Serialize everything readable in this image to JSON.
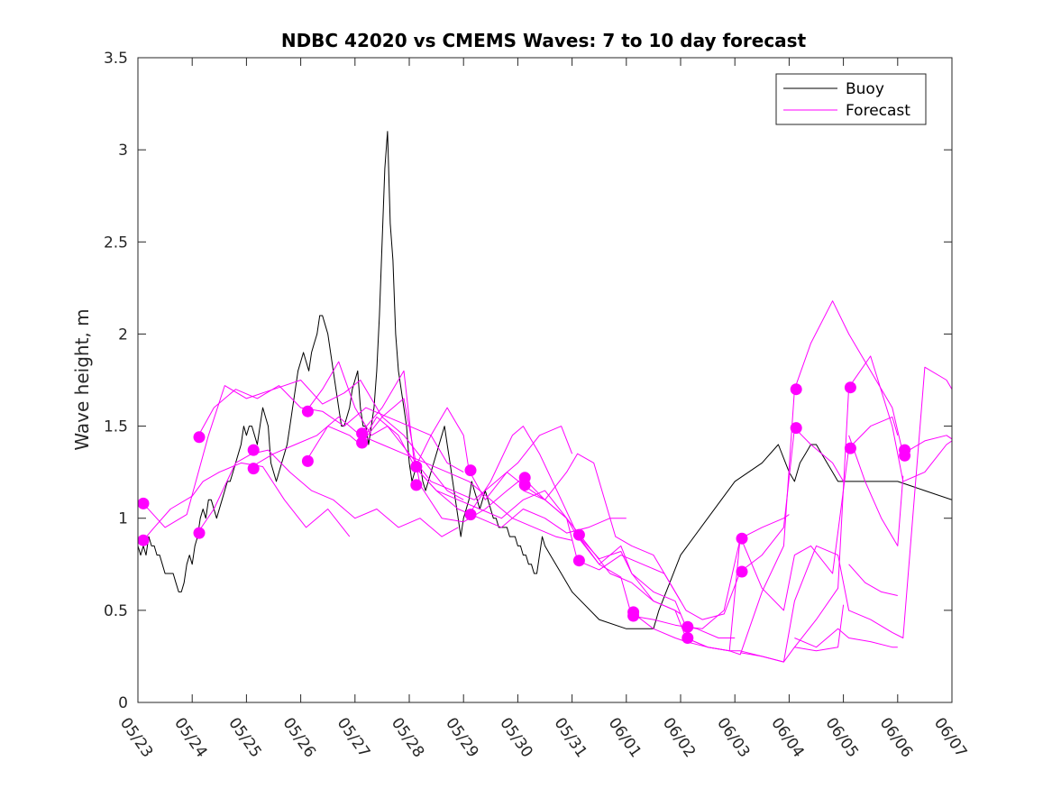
{
  "chart_data": {
    "type": "line",
    "title": "NDBC 42020 vs CMEMS Waves: 7 to 10 day forecast",
    "xlabel": "",
    "ylabel": "Wave height, m",
    "xlim": [
      0,
      15
    ],
    "ylim": [
      0,
      3.5
    ],
    "x_tick_labels": [
      "05/23",
      "05/24",
      "05/25",
      "05/26",
      "05/27",
      "05/28",
      "05/29",
      "05/30",
      "05/31",
      "06/01",
      "06/02",
      "06/03",
      "06/04",
      "06/05",
      "06/06",
      "06/07"
    ],
    "y_ticks": [
      0,
      0.5,
      1,
      1.5,
      2,
      2.5,
      3,
      3.5
    ],
    "y_tick_labels": [
      "0",
      "0.5",
      "1",
      "1.5",
      "2",
      "2.5",
      "3",
      "3.5"
    ],
    "x_unit": "days from 05/23",
    "grid": false,
    "legend": {
      "position": "top-right",
      "entries": [
        {
          "name": "Buoy",
          "color": "#000000"
        },
        {
          "name": "Forecast",
          "color": "#ff00ff"
        }
      ]
    },
    "series": [
      {
        "name": "Buoy",
        "color": "#000000",
        "x": [
          0,
          0.05,
          0.1,
          0.15,
          0.2,
          0.25,
          0.3,
          0.35,
          0.4,
          0.45,
          0.5,
          0.55,
          0.6,
          0.65,
          0.7,
          0.75,
          0.8,
          0.85,
          0.9,
          0.95,
          1.0,
          1.05,
          1.1,
          1.15,
          1.2,
          1.25,
          1.3,
          1.35,
          1.4,
          1.45,
          1.5,
          1.55,
          1.6,
          1.65,
          1.7,
          1.75,
          1.8,
          1.85,
          1.9,
          1.95,
          2.0,
          2.05,
          2.1,
          2.15,
          2.2,
          2.25,
          2.3,
          2.35,
          2.4,
          2.45,
          2.5,
          2.55,
          2.6,
          2.65,
          2.7,
          2.75,
          2.8,
          2.85,
          2.9,
          2.95,
          3.0,
          3.05,
          3.1,
          3.15,
          3.2,
          3.25,
          3.3,
          3.35,
          3.4,
          3.45,
          3.5,
          3.55,
          3.6,
          3.65,
          3.7,
          3.75,
          3.8,
          3.85,
          3.9,
          3.95,
          4.0,
          4.05,
          4.1,
          4.15,
          4.2,
          4.25,
          4.3,
          4.35,
          4.4,
          4.45,
          4.5,
          4.55,
          4.6,
          4.65,
          4.7,
          4.75,
          4.8,
          4.85,
          4.9,
          4.95,
          5.0,
          5.05,
          5.1,
          5.15,
          5.2,
          5.25,
          5.3,
          5.35,
          5.4,
          5.45,
          5.5,
          5.55,
          5.6,
          5.65,
          5.7,
          5.75,
          5.8,
          5.85,
          5.9,
          5.95,
          6.0,
          6.05,
          6.1,
          6.15,
          6.2,
          6.25,
          6.3,
          6.35,
          6.4,
          6.45,
          6.5,
          6.55,
          6.6,
          6.65,
          6.7,
          6.75,
          6.8,
          6.85,
          6.9,
          6.95,
          7.0,
          7.05,
          7.1,
          7.15,
          7.2,
          7.25,
          7.3,
          7.35,
          7.4,
          7.45,
          7.5,
          7.6,
          7.8,
          8.0,
          8.5,
          9.0,
          9.5,
          9.6,
          9.8,
          10.0,
          10.5,
          11.0,
          11.5,
          11.8,
          12.0,
          12.1,
          12.15,
          12.2,
          12.3,
          12.4,
          12.5,
          12.6,
          12.7,
          12.8,
          12.9,
          13.0,
          13.5,
          14.0,
          14.5,
          15.0
        ],
        "y": [
          0.85,
          0.8,
          0.85,
          0.8,
          0.9,
          0.85,
          0.85,
          0.8,
          0.8,
          0.75,
          0.7,
          0.7,
          0.7,
          0.7,
          0.65,
          0.6,
          0.6,
          0.65,
          0.75,
          0.8,
          0.75,
          0.85,
          0.9,
          1.0,
          1.05,
          1.0,
          1.1,
          1.1,
          1.05,
          1.0,
          1.05,
          1.1,
          1.15,
          1.2,
          1.2,
          1.25,
          1.3,
          1.35,
          1.4,
          1.5,
          1.45,
          1.5,
          1.5,
          1.45,
          1.4,
          1.5,
          1.6,
          1.55,
          1.5,
          1.3,
          1.25,
          1.2,
          1.25,
          1.3,
          1.35,
          1.4,
          1.5,
          1.6,
          1.7,
          1.8,
          1.85,
          1.9,
          1.85,
          1.8,
          1.9,
          1.95,
          2.0,
          2.1,
          2.1,
          2.05,
          2.0,
          1.9,
          1.8,
          1.7,
          1.6,
          1.5,
          1.5,
          1.55,
          1.6,
          1.7,
          1.75,
          1.8,
          1.6,
          1.5,
          1.5,
          1.4,
          1.5,
          1.6,
          1.8,
          2.1,
          2.5,
          2.9,
          3.1,
          2.6,
          2.4,
          2.0,
          1.8,
          1.7,
          1.6,
          1.5,
          1.3,
          1.2,
          1.25,
          1.3,
          1.3,
          1.2,
          1.15,
          1.2,
          1.25,
          1.3,
          1.35,
          1.4,
          1.45,
          1.5,
          1.4,
          1.3,
          1.2,
          1.1,
          1.0,
          0.9,
          1.0,
          1.05,
          1.1,
          1.2,
          1.15,
          1.1,
          1.05,
          1.1,
          1.15,
          1.1,
          1.05,
          1.0,
          1.0,
          0.95,
          0.95,
          0.95,
          0.95,
          0.9,
          0.9,
          0.9,
          0.85,
          0.85,
          0.8,
          0.8,
          0.75,
          0.75,
          0.7,
          0.7,
          0.8,
          0.9,
          0.85,
          0.8,
          0.7,
          0.6,
          0.45,
          0.4,
          0.4,
          0.5,
          0.65,
          0.8,
          1.0,
          1.2,
          1.3,
          1.4,
          1.25,
          1.2,
          1.25,
          1.3,
          1.35,
          1.4,
          1.4,
          1.35,
          1.3,
          1.25,
          1.2,
          1.2,
          1.2,
          1.2,
          1.15,
          1.1
        ]
      },
      {
        "name": "",
        "color": "#ff00ff",
        "x": [
          0.1,
          0.3,
          0.6,
          1.0,
          1.2,
          1.5,
          1.9,
          2.3,
          2.7,
          3.1,
          3.5,
          3.9
        ],
        "y": [
          0.88,
          0.95,
          1.05,
          1.12,
          1.2,
          1.25,
          1.3,
          1.28,
          1.1,
          0.95,
          1.05,
          0.9
        ]
      },
      {
        "name": "",
        "color": "#ff00ff",
        "x": [
          0.1,
          0.5,
          0.9,
          1.3,
          1.6,
          2.0,
          2.5,
          3.0,
          3.4,
          3.8,
          4.1,
          4.5,
          4.9,
          5.3,
          5.7,
          6.0
        ],
        "y": [
          1.08,
          0.95,
          1.02,
          1.45,
          1.72,
          1.65,
          1.7,
          1.75,
          1.62,
          1.68,
          1.75,
          1.55,
          1.45,
          1.3,
          1.15,
          1.1
        ]
      },
      {
        "name": "",
        "color": "#ff00ff",
        "x": [
          1.1,
          1.4,
          1.8,
          2.1,
          2.4,
          2.8,
          3.2,
          3.6,
          4.0,
          4.4,
          4.8,
          5.2,
          5.6,
          5.9
        ],
        "y": [
          0.92,
          1.05,
          1.3,
          1.35,
          1.37,
          1.25,
          1.15,
          1.1,
          1.0,
          1.05,
          0.95,
          1.0,
          0.9,
          0.95
        ]
      },
      {
        "name": "",
        "color": "#ff00ff",
        "x": [
          1.1,
          1.4,
          1.8,
          2.2,
          2.6,
          3.0,
          3.4,
          3.8,
          4.2,
          4.6,
          5.0,
          5.4,
          5.7,
          6.0
        ],
        "y": [
          1.44,
          1.6,
          1.7,
          1.65,
          1.72,
          1.6,
          1.58,
          1.5,
          1.6,
          1.55,
          1.5,
          1.45,
          1.3,
          1.25
        ]
      },
      {
        "name": "",
        "color": "#ff00ff",
        "x": [
          2.1,
          2.5,
          2.9,
          3.3,
          3.7,
          4.1,
          4.5,
          4.9,
          5.3,
          5.7,
          6.1,
          6.5,
          6.9,
          7.3,
          7.7,
          8.0
        ],
        "y": [
          1.28,
          1.35,
          1.4,
          1.45,
          1.55,
          1.45,
          1.4,
          1.35,
          1.3,
          1.25,
          1.2,
          1.1,
          1.0,
          0.95,
          0.9,
          0.88
        ]
      },
      {
        "name": "",
        "color": "#ff00ff",
        "x": [
          3.1,
          3.4,
          3.7,
          4.0,
          4.3,
          4.6,
          5.0,
          5.4,
          5.8,
          6.2,
          6.6,
          7.0,
          7.4,
          7.8,
          8.0
        ],
        "y": [
          1.58,
          1.7,
          1.85,
          1.6,
          1.45,
          1.5,
          1.35,
          1.2,
          1.15,
          1.1,
          1.2,
          1.3,
          1.45,
          1.5,
          1.35
        ]
      },
      {
        "name": "",
        "color": "#ff00ff",
        "x": [
          3.1,
          3.5,
          3.9,
          4.1,
          4.4,
          4.8,
          5.1,
          5.5,
          5.9,
          6.3,
          6.7,
          7.1,
          7.5,
          7.9,
          8.3,
          8.7,
          9.0
        ],
        "y": [
          1.31,
          1.5,
          1.45,
          1.4,
          1.55,
          1.45,
          1.28,
          1.15,
          1.05,
          1.0,
          0.95,
          1.05,
          1.0,
          0.92,
          0.95,
          1.0,
          1.0
        ]
      },
      {
        "name": "",
        "color": "#ff00ff",
        "x": [
          4.1,
          4.5,
          4.9,
          5.1,
          5.5,
          5.9,
          6.3,
          6.7,
          7.1,
          7.5,
          7.9,
          8.1,
          8.5,
          8.9,
          9.3,
          9.7,
          10.0
        ],
        "y": [
          1.46,
          1.6,
          1.8,
          1.28,
          1.15,
          1.1,
          1.05,
          1.0,
          1.1,
          1.15,
          1.0,
          0.77,
          0.72,
          0.8,
          0.75,
          0.7,
          0.55
        ]
      },
      {
        "name": "",
        "color": "#ff00ff",
        "x": [
          4.1,
          4.5,
          4.9,
          5.2,
          5.6,
          6.0,
          6.4,
          6.8,
          7.1,
          7.5,
          7.9,
          8.3,
          8.7,
          9.1,
          9.5,
          9.9,
          10.0
        ],
        "y": [
          1.4,
          1.55,
          1.65,
          1.18,
          1.0,
          0.98,
          1.05,
          1.15,
          1.22,
          1.1,
          1.0,
          0.85,
          0.7,
          0.65,
          0.55,
          0.5,
          0.48
        ]
      },
      {
        "name": "",
        "color": "#ff00ff",
        "x": [
          5.1,
          5.4,
          5.7,
          6.0,
          6.1,
          6.4,
          6.8,
          7.1,
          7.5,
          7.9,
          8.1,
          8.5,
          8.9,
          9.1,
          9.5,
          9.9,
          10.3,
          10.7,
          11.0
        ],
        "y": [
          1.27,
          1.45,
          1.6,
          1.45,
          1.26,
          1.1,
          1.25,
          1.18,
          1.1,
          1.0,
          0.9,
          0.75,
          0.68,
          0.47,
          0.45,
          0.42,
          0.4,
          0.35,
          0.35
        ]
      },
      {
        "name": "",
        "color": "#ff00ff",
        "x": [
          6.1,
          6.5,
          6.9,
          7.1,
          7.4,
          7.8,
          8.1,
          8.5,
          8.9,
          9.1,
          9.5,
          9.9,
          10.1,
          10.4,
          10.8,
          11.1,
          11.5,
          11.9,
          12.0
        ],
        "y": [
          1.02,
          1.2,
          1.45,
          1.5,
          1.35,
          1.1,
          0.91,
          0.75,
          0.85,
          0.7,
          0.6,
          0.55,
          0.41,
          0.4,
          0.5,
          0.89,
          0.95,
          1.0,
          1.02
        ]
      },
      {
        "name": "",
        "color": "#ff00ff",
        "x": [
          7.1,
          7.5,
          7.9,
          8.1,
          8.4,
          8.8,
          9.1,
          9.5,
          9.9,
          10.1,
          10.4,
          10.8,
          11.1,
          11.5,
          11.9,
          12.1,
          12.4,
          12.8,
          13.0
        ],
        "y": [
          1.15,
          1.1,
          1.25,
          1.35,
          1.3,
          0.9,
          0.85,
          0.8,
          0.6,
          0.5,
          0.45,
          0.48,
          0.71,
          0.8,
          0.95,
          1.49,
          1.4,
          1.3,
          1.2
        ]
      },
      {
        "name": "",
        "color": "#ff00ff",
        "x": [
          8.1,
          8.5,
          8.9,
          9.1,
          9.5,
          9.9,
          10.1,
          10.5,
          10.9,
          11.1,
          11.5,
          11.9,
          12.1,
          12.4,
          12.8,
          13.1,
          13.5,
          13.9,
          14.0
        ],
        "y": [
          0.91,
          0.78,
          0.82,
          0.7,
          0.55,
          0.5,
          0.35,
          0.3,
          0.28,
          0.9,
          0.62,
          0.5,
          0.8,
          0.85,
          0.7,
          1.38,
          1.5,
          1.55,
          1.45
        ]
      },
      {
        "name": "",
        "color": "#ff00ff",
        "x": [
          9.1,
          9.5,
          9.9,
          10.1,
          10.5,
          10.9,
          11.1,
          11.5,
          11.9,
          12.1,
          12.4,
          12.8,
          13.1,
          13.5,
          13.9,
          14.1,
          14.5,
          14.9,
          15.0
        ],
        "y": [
          0.49,
          0.4,
          0.35,
          0.33,
          0.3,
          0.28,
          0.26,
          0.6,
          0.85,
          1.7,
          1.95,
          2.18,
          2.0,
          1.8,
          1.6,
          1.35,
          1.42,
          1.45,
          1.43
        ]
      },
      {
        "name": "",
        "color": "#ff00ff",
        "x": [
          10.1,
          10.5,
          10.9,
          11.1,
          11.5,
          11.9,
          12.1,
          12.5,
          12.9,
          13.1,
          13.5,
          13.9,
          14.1,
          14.5,
          14.9,
          15.0
        ],
        "y": [
          0.35,
          0.3,
          0.28,
          0.28,
          0.25,
          0.22,
          0.3,
          0.45,
          0.62,
          1.71,
          1.88,
          1.5,
          1.2,
          1.25,
          1.4,
          1.42
        ]
      },
      {
        "name": "",
        "color": "#ff00ff",
        "x": [
          11.1,
          11.5,
          11.9,
          12.1,
          12.5,
          12.9,
          13.1,
          13.5,
          13.9,
          14.1,
          14.5,
          14.9,
          15.0
        ],
        "y": [
          0.27,
          0.25,
          0.22,
          0.55,
          0.85,
          0.8,
          0.5,
          0.45,
          0.38,
          0.35,
          1.82,
          1.75,
          1.7
        ]
      },
      {
        "name": "",
        "color": "#ff00ff",
        "x": [
          12.1,
          12.5,
          12.9,
          13.1,
          13.5,
          13.9,
          14.0
        ],
        "y": [
          0.35,
          0.3,
          0.4,
          0.35,
          0.33,
          0.3,
          0.3
        ]
      },
      {
        "name": "",
        "color": "#ff00ff",
        "x": [
          12.1,
          12.5,
          12.9,
          13.0
        ],
        "y": [
          0.3,
          0.28,
          0.3,
          0.53
        ]
      },
      {
        "name": "",
        "color": "#ff00ff",
        "x": [
          13.1,
          13.4,
          13.7,
          14.0
        ],
        "y": [
          0.75,
          0.65,
          0.6,
          0.58
        ]
      },
      {
        "name": "",
        "color": "#ff00ff",
        "x": [
          13.1,
          13.4,
          13.7,
          14.0,
          14.1
        ],
        "y": [
          1.45,
          1.2,
          1.0,
          0.85,
          1.23
        ]
      }
    ],
    "markers": {
      "color": "#ff00ff",
      "points": [
        [
          0.1,
          1.08
        ],
        [
          0.1,
          0.88
        ],
        [
          1.13,
          1.44
        ],
        [
          1.13,
          0.92
        ],
        [
          2.13,
          1.37
        ],
        [
          2.13,
          1.27
        ],
        [
          3.13,
          1.58
        ],
        [
          3.13,
          1.31
        ],
        [
          4.13,
          1.46
        ],
        [
          4.13,
          1.41
        ],
        [
          5.13,
          1.28
        ],
        [
          5.13,
          1.18
        ],
        [
          6.13,
          1.26
        ],
        [
          6.13,
          1.02
        ],
        [
          7.13,
          1.22
        ],
        [
          7.13,
          1.18
        ],
        [
          8.13,
          0.91
        ],
        [
          8.13,
          0.77
        ],
        [
          9.13,
          0.49
        ],
        [
          9.13,
          0.47
        ],
        [
          10.13,
          0.41
        ],
        [
          10.13,
          0.35
        ],
        [
          11.13,
          0.89
        ],
        [
          11.13,
          0.71
        ],
        [
          12.13,
          1.7
        ],
        [
          12.13,
          1.49
        ],
        [
          13.13,
          1.71
        ],
        [
          13.13,
          1.38
        ],
        [
          14.13,
          1.37
        ],
        [
          14.13,
          1.34
        ]
      ]
    }
  }
}
